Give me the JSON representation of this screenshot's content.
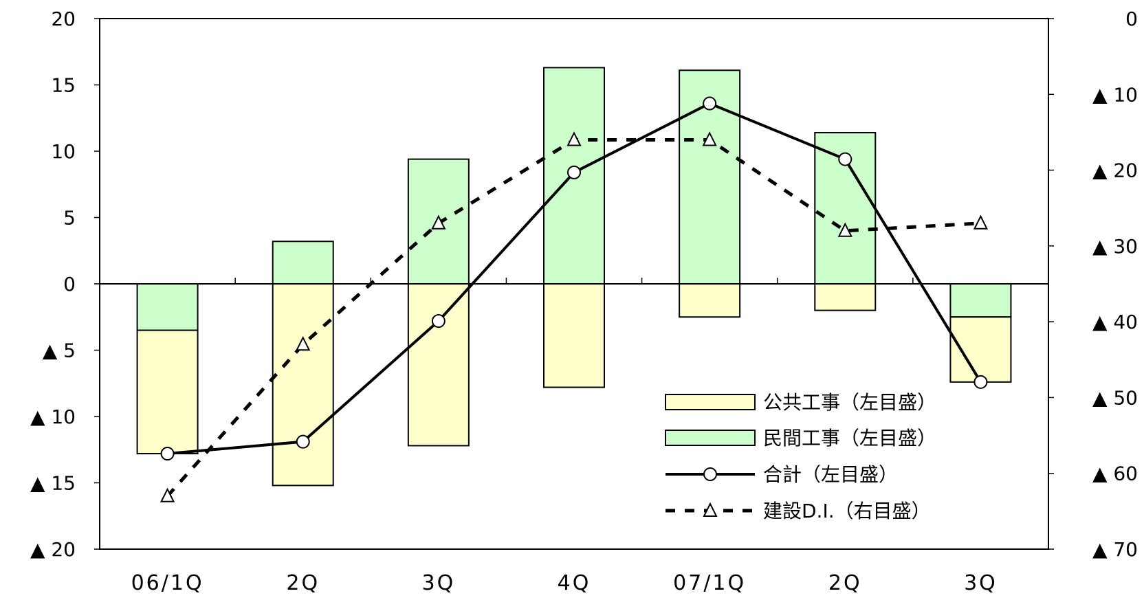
{
  "chart_data": {
    "type": "bar",
    "categories": [
      "06/1Q",
      "2Q",
      "3Q",
      "4Q",
      "07/1Q",
      "2Q",
      "3Q"
    ],
    "left_axis": {
      "ylim": [
        -20,
        20
      ],
      "ticks": [
        20,
        15,
        10,
        5,
        0,
        -5,
        -10,
        -15,
        -20
      ],
      "tick_labels": [
        "20",
        "15",
        "10",
        "5",
        "0",
        "▲ 5",
        "▲ 10",
        "▲ 15",
        "▲ 20"
      ]
    },
    "right_axis": {
      "ylim": [
        -70,
        0
      ],
      "inverted_scale": true,
      "ticks": [
        0,
        -10,
        -20,
        -30,
        -40,
        -50,
        -60,
        -70
      ],
      "tick_labels": [
        "0",
        "▲ 10",
        "▲ 20",
        "▲ 30",
        "▲ 40",
        "▲ 50",
        "▲ 60",
        "▲ 70"
      ]
    },
    "series": [
      {
        "name": "公共工事（左目盛）",
        "kind": "stacked-bar",
        "axis": "left",
        "color": "#ffffcc",
        "values": [
          -9.3,
          -15.2,
          -12.2,
          -7.8,
          -2.5,
          -2.0,
          -4.9
        ]
      },
      {
        "name": "民間工事（左目盛）",
        "kind": "stacked-bar",
        "axis": "left",
        "color": "#ccffcc",
        "values": [
          -3.5,
          3.2,
          9.4,
          16.3,
          16.1,
          11.4,
          -2.5
        ]
      },
      {
        "name": "合計（左目盛）",
        "kind": "line",
        "axis": "left",
        "style": "solid",
        "marker": "circle",
        "values": [
          -12.8,
          -11.9,
          -2.8,
          8.4,
          13.6,
          9.4,
          -7.4
        ]
      },
      {
        "name": "建設D.I.（右目盛）",
        "kind": "line",
        "axis": "right",
        "style": "dashed",
        "marker": "triangle",
        "values": [
          -63,
          -43,
          -27,
          -16,
          -16,
          -28,
          -27
        ]
      }
    ],
    "legend_position": "bottom-right inside plot",
    "grid": false
  }
}
